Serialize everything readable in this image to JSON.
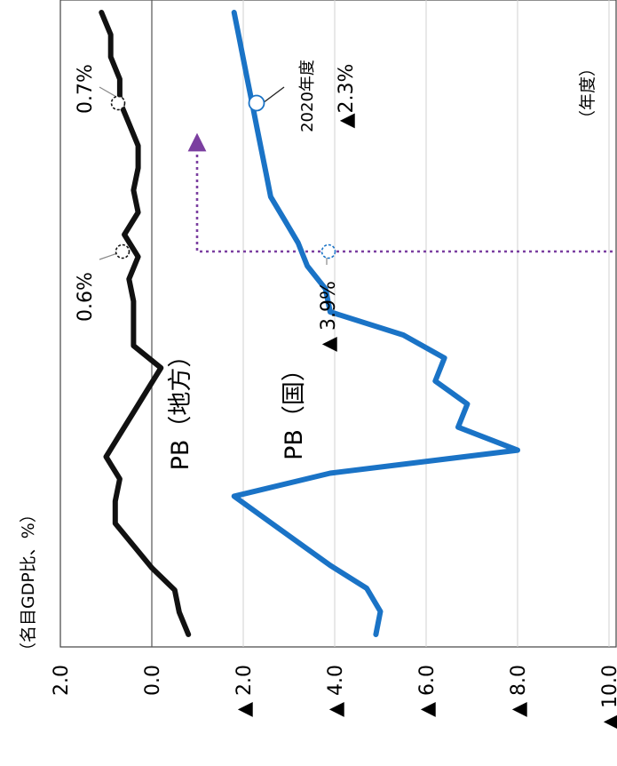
{
  "chart_data": {
    "type": "line",
    "orientation": "rotated-90-clockwise",
    "unit_label": "（名目GDP比、%）",
    "x_axis_label": "（年度）",
    "ylim": [
      -10,
      2
    ],
    "y_ticks": [
      {
        "v": 2,
        "label": "2.0"
      },
      {
        "v": 0,
        "label": "0.0"
      },
      {
        "v": -2,
        "label": "▲ 2.0"
      },
      {
        "v": -4,
        "label": "▲ 4.0"
      },
      {
        "v": -6,
        "label": "▲ 6.0"
      },
      {
        "v": -8,
        "label": "▲ 8.0"
      },
      {
        "v": -10,
        "label": "▲ 10.0"
      }
    ],
    "grid": true,
    "series": [
      {
        "name": "PB（地方）",
        "color": "#111111",
        "values": [
          -0.8,
          -0.6,
          -0.5,
          0.0,
          0.4,
          0.8,
          0.8,
          0.7,
          1.0,
          0.7,
          0.4,
          0.1,
          -0.2,
          0.4,
          0.4,
          0.4,
          0.5,
          0.3,
          0.6,
          0.3,
          0.4,
          0.3,
          0.3,
          0.5,
          0.7,
          0.7,
          0.9,
          0.9,
          1.1
        ]
      },
      {
        "name": "PB（国）",
        "color": "#1a73c6",
        "values": [
          -4.9,
          -5.0,
          -4.7,
          -3.9,
          -3.2,
          -2.5,
          -1.8,
          -3.9,
          -8.0,
          -6.7,
          -6.9,
          -6.2,
          -6.4,
          -5.5,
          -3.9,
          -3.8,
          -3.4,
          -3.2,
          -2.9,
          -2.6,
          -2.5,
          -2.4,
          -2.3,
          -2.2,
          -2.1,
          -2.0,
          -1.9,
          -1.8
        ]
      }
    ],
    "annotations": {
      "local_2020": "0.6%",
      "local_latest": "0.7%",
      "national_2020": "▲ 3.9%",
      "national_latest_year": "2020年度",
      "national_latest_value": "▲2.3%"
    }
  }
}
